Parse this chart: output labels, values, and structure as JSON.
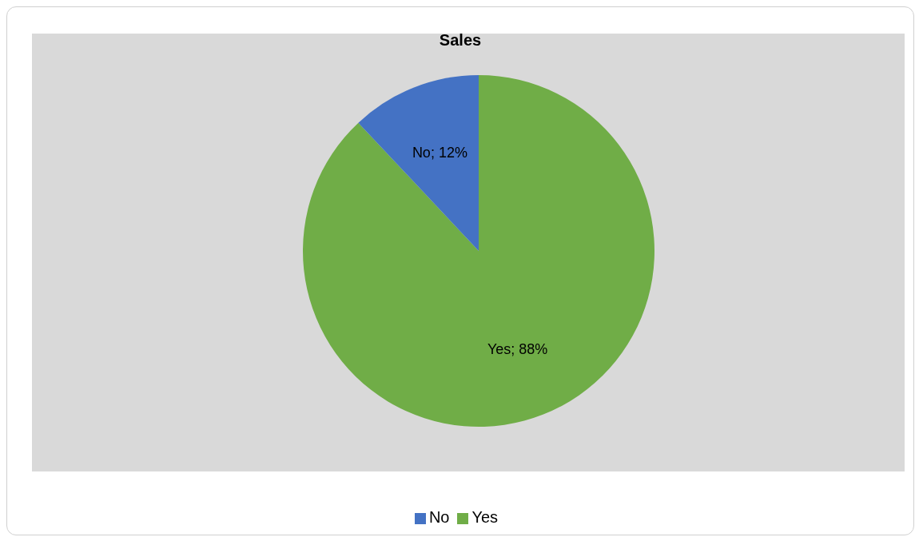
{
  "chart_data": {
    "type": "pie",
    "title": "Sales",
    "categories": [
      "Yes",
      "No"
    ],
    "values": [
      88,
      12
    ],
    "colors": [
      "#70ad47",
      "#4472c4"
    ],
    "value_labels": [
      "Yes; 88%",
      "No; 12%"
    ],
    "legend": "bottom"
  }
}
